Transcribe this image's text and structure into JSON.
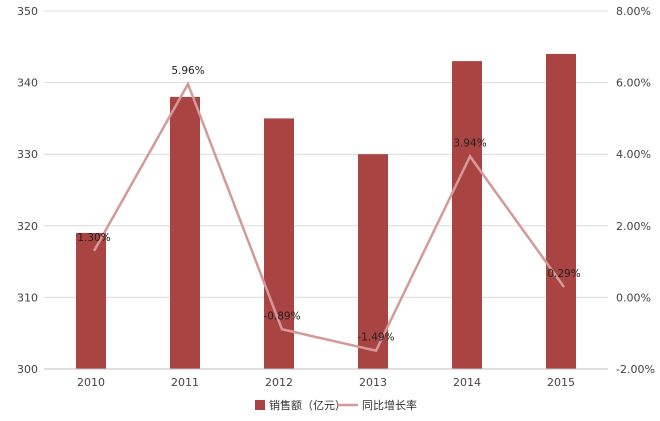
{
  "chart_data": {
    "type": "bar",
    "categories": [
      "2010",
      "2011",
      "2012",
      "2013",
      "2014",
      "2015"
    ],
    "series": [
      {
        "name": "销售额（亿元）",
        "type": "bar",
        "axis": "left",
        "values": [
          319,
          338,
          335,
          330,
          343,
          344
        ]
      },
      {
        "name": "同比增长率",
        "type": "line",
        "axis": "right",
        "values": [
          1.3,
          5.96,
          -0.89,
          -1.49,
          3.94,
          0.29
        ]
      }
    ],
    "left_axis": {
      "min": 300,
      "max": 350,
      "ticks": [
        "300",
        "310",
        "320",
        "330",
        "340",
        "350"
      ]
    },
    "right_axis": {
      "min": -2,
      "max": 8,
      "ticks": [
        "-2.00%",
        "0.00%",
        "2.00%",
        "4.00%",
        "6.00%",
        "8.00%"
      ]
    },
    "data_labels": [
      "1.30%",
      "5.96%",
      "-0.89%",
      "-1.49%",
      "3.94%",
      "0.29%"
    ],
    "legend": [
      {
        "label": "销售额（亿元）",
        "kind": "bar"
      },
      {
        "label": "同比增长率",
        "kind": "line"
      }
    ],
    "legend_position": "bottom",
    "grid": true,
    "colors": {
      "bar": "#a94442",
      "line": "#d49a9a"
    }
  }
}
